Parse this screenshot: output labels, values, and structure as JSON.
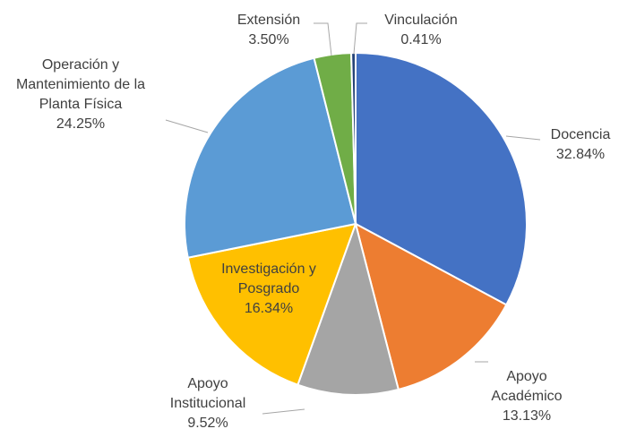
{
  "chart_data": {
    "type": "pie",
    "categories": [
      "Docencia",
      "Apoyo Académico",
      "Apoyo Institucional",
      "Investigación y Posgrado",
      "Operación y Mantenimiento de la Planta Física",
      "Extensión",
      "Vinculación"
    ],
    "values": [
      32.84,
      13.13,
      9.52,
      16.34,
      24.25,
      3.5,
      0.41
    ],
    "value_labels": [
      "32.84%",
      "13.13%",
      "9.52%",
      "16.34%",
      "24.25%",
      "3.50%",
      "0.41%"
    ],
    "colors": [
      "#4472c4",
      "#ed7d31",
      "#a5a5a5",
      "#ffc000",
      "#5b9bd5",
      "#70ad47",
      "#264478"
    ]
  }
}
